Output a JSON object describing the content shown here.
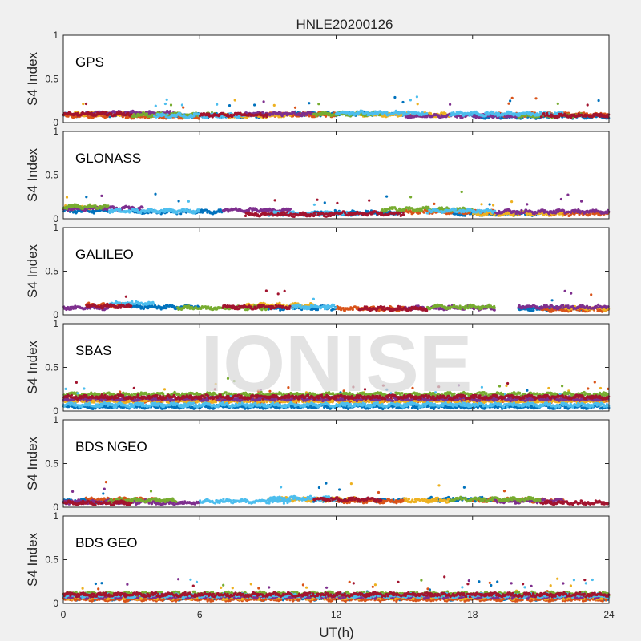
{
  "figure_title": "HNLE20200126",
  "watermark": "IONISE",
  "x_axis": {
    "label": "UT(h)",
    "ticks": [
      0,
      6,
      12,
      18,
      24
    ],
    "range": [
      0,
      24
    ]
  },
  "y_axis": {
    "label": "S4 Index",
    "ticks": [
      0,
      0.5,
      1
    ],
    "tick_labels": [
      "0",
      "0.5",
      "1"
    ],
    "range": [
      0,
      1
    ]
  },
  "palette": [
    "#0072BD",
    "#D95319",
    "#EDB120",
    "#7E2F8E",
    "#77AC30",
    "#4DBEEE",
    "#A2142F"
  ],
  "chart_data": [
    {
      "type": "scatter",
      "title": "GPS",
      "xlim": [
        0,
        24
      ],
      "ylim": [
        0,
        1
      ],
      "series_levels": [
        {
          "segments": [
            [
              0,
              3.5,
              0.09
            ],
            [
              5,
              9,
              0.08
            ],
            [
              10,
              15,
              0.1
            ],
            [
              18,
              24,
              0.07
            ]
          ],
          "color": "#0072BD"
        },
        {
          "segments": [
            [
              0,
              2,
              0.08
            ],
            [
              2.5,
              6,
              0.07
            ],
            [
              9,
              12,
              0.09
            ],
            [
              19,
              24,
              0.09
            ]
          ],
          "color": "#D95319"
        },
        {
          "segments": [
            [
              0.5,
              4,
              0.1
            ],
            [
              7,
              10,
              0.08
            ],
            [
              13,
              17,
              0.09
            ]
          ],
          "color": "#EDB120"
        },
        {
          "segments": [
            [
              1,
              5,
              0.11
            ],
            [
              8,
              11,
              0.1
            ],
            [
              15,
              20,
              0.08
            ]
          ],
          "color": "#7E2F8E"
        },
        {
          "segments": [
            [
              3,
              7,
              0.09
            ],
            [
              11,
              14,
              0.1
            ],
            [
              20,
              23,
              0.08
            ]
          ],
          "color": "#77AC30"
        },
        {
          "segments": [
            [
              4,
              8,
              0.08
            ],
            [
              12,
              16,
              0.11
            ],
            [
              17,
              22,
              0.1
            ]
          ],
          "color": "#4DBEEE"
        },
        {
          "segments": [
            [
              0,
              3,
              0.1
            ],
            [
              6,
              9,
              0.09
            ],
            [
              21,
              24,
              0.08
            ]
          ],
          "color": "#A2142F"
        }
      ]
    },
    {
      "type": "scatter",
      "title": "GLONASS",
      "xlim": [
        0,
        24
      ],
      "ylim": [
        0,
        1
      ],
      "series_levels": [
        {
          "segments": [
            [
              0,
              2,
              0.09
            ],
            [
              3,
              7,
              0.08
            ],
            [
              11,
              15,
              0.07
            ],
            [
              17,
              21,
              0.06
            ]
          ],
          "color": "#0072BD"
        },
        {
          "segments": [
            [
              15,
              19,
              0.08
            ],
            [
              21,
              24,
              0.06
            ]
          ],
          "color": "#D95319"
        },
        {
          "segments": [
            [
              18,
              22,
              0.06
            ],
            [
              0,
              1.5,
              0.13
            ]
          ],
          "color": "#EDB120"
        },
        {
          "segments": [
            [
              0,
              3.5,
              0.12
            ],
            [
              7,
              10,
              0.1
            ],
            [
              19,
              24,
              0.08
            ]
          ],
          "color": "#7E2F8E"
        },
        {
          "segments": [
            [
              0,
              2,
              0.14
            ],
            [
              14,
              18,
              0.11
            ]
          ],
          "color": "#77AC30"
        },
        {
          "segments": [
            [
              2,
              6,
              0.09
            ],
            [
              9,
              13,
              0.06
            ],
            [
              16,
              19,
              0.09
            ]
          ],
          "color": "#4DBEEE"
        },
        {
          "segments": [
            [
              8,
              12,
              0.05
            ],
            [
              12,
              15,
              0.06
            ]
          ],
          "color": "#A2142F"
        }
      ]
    },
    {
      "type": "scatter",
      "title": "GALILEO",
      "xlim": [
        0,
        24
      ],
      "ylim": [
        0,
        1
      ],
      "series_levels": [
        {
          "segments": [
            [
              3,
              6,
              0.09
            ],
            [
              9,
              12,
              0.08
            ],
            [
              20,
              23,
              0.07
            ]
          ],
          "color": "#0072BD"
        },
        {
          "segments": [
            [
              1,
              3,
              0.11
            ],
            [
              12,
              15,
              0.07
            ],
            [
              21,
              24,
              0.06
            ]
          ],
          "color": "#D95319"
        },
        {
          "segments": [
            [
              8,
              11,
              0.11
            ],
            [
              22,
              24,
              0.08
            ]
          ],
          "color": "#EDB120"
        },
        {
          "segments": [
            [
              0,
              2,
              0.08
            ],
            [
              15,
              19,
              0.08
            ],
            [
              20,
              24,
              0.09
            ]
          ],
          "color": "#7E2F8E"
        },
        {
          "segments": [
            [
              5,
              9,
              0.08
            ],
            [
              16,
              19,
              0.09
            ]
          ],
          "color": "#77AC30"
        },
        {
          "segments": [
            [
              2,
              4,
              0.13
            ],
            [
              10,
              12,
              0.09
            ]
          ],
          "color": "#4DBEEE"
        },
        {
          "segments": [
            [
              1,
              3,
              0.1
            ],
            [
              7,
              10,
              0.09
            ],
            [
              13,
              16,
              0.07
            ]
          ],
          "color": "#A2142F"
        }
      ]
    },
    {
      "type": "scatter",
      "title": "SBAS",
      "xlim": [
        0,
        24
      ],
      "ylim": [
        0,
        1
      ],
      "series_levels": [
        {
          "segments": [
            [
              0,
              24,
              0.05
            ]
          ],
          "color": "#0072BD"
        },
        {
          "segments": [
            [
              0,
              24,
              0.12
            ]
          ],
          "color": "#D95319"
        },
        {
          "segments": [
            [
              0,
              24,
              0.11
            ]
          ],
          "color": "#EDB120"
        },
        {
          "segments": [
            [
              0,
              24,
              0.14
            ]
          ],
          "color": "#7E2F8E"
        },
        {
          "segments": [
            [
              0,
              24,
              0.19
            ]
          ],
          "color": "#77AC30"
        },
        {
          "segments": [
            [
              0,
              24,
              0.07
            ]
          ],
          "color": "#4DBEEE"
        },
        {
          "segments": [
            [
              0,
              24,
              0.16
            ]
          ],
          "color": "#A2142F"
        }
      ]
    },
    {
      "type": "scatter",
      "title": "BDS NGEO",
      "xlim": [
        0,
        24
      ],
      "ylim": [
        0,
        1
      ],
      "series_levels": [
        {
          "segments": [
            [
              0,
              3,
              0.07
            ],
            [
              11,
              15,
              0.08
            ],
            [
              16,
              19,
              0.09
            ]
          ],
          "color": "#0072BD"
        },
        {
          "segments": [
            [
              1,
              4,
              0.09
            ],
            [
              12,
              15,
              0.07
            ],
            [
              18,
              22,
              0.08
            ]
          ],
          "color": "#D95319"
        },
        {
          "segments": [
            [
              9,
              13,
              0.09
            ],
            [
              15,
              17,
              0.08
            ]
          ],
          "color": "#EDB120"
        },
        {
          "segments": [
            [
              0,
              4,
              0.06
            ],
            [
              4,
              6,
              0.05
            ],
            [
              19,
              22,
              0.07
            ]
          ],
          "color": "#7E2F8E"
        },
        {
          "segments": [
            [
              2,
              5,
              0.08
            ],
            [
              17,
              21,
              0.09
            ]
          ],
          "color": "#77AC30"
        },
        {
          "segments": [
            [
              6,
              10,
              0.07
            ],
            [
              9,
              12,
              0.1
            ]
          ],
          "color": "#4DBEEE"
        },
        {
          "segments": [
            [
              0,
              3,
              0.05
            ],
            [
              11,
              14,
              0.09
            ],
            [
              21,
              24,
              0.05
            ]
          ],
          "color": "#A2142F"
        }
      ]
    },
    {
      "type": "scatter",
      "title": "BDS GEO",
      "xlim": [
        0,
        24
      ],
      "ylim": [
        0,
        1
      ],
      "series_levels": [
        {
          "segments": [
            [
              0,
              24,
              0.06
            ]
          ],
          "color": "#0072BD"
        },
        {
          "segments": [
            [
              0,
              24,
              0.05
            ]
          ],
          "color": "#D95319"
        },
        {
          "segments": [
            [
              0,
              24,
              0.07
            ]
          ],
          "color": "#EDB120"
        },
        {
          "segments": [
            [
              0,
              24,
              0.08
            ]
          ],
          "color": "#7E2F8E"
        },
        {
          "segments": [
            [
              0,
              24,
              0.11
            ]
          ],
          "color": "#77AC30"
        },
        {
          "segments": [
            [
              0,
              24,
              0.09
            ]
          ],
          "color": "#4DBEEE"
        },
        {
          "segments": [
            [
              0,
              24,
              0.1
            ]
          ],
          "color": "#A2142F"
        }
      ]
    }
  ]
}
